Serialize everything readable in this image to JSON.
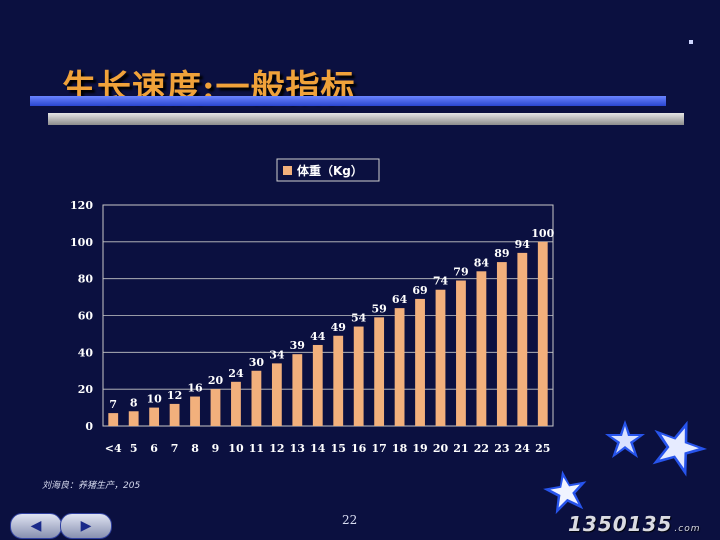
{
  "slide": {
    "title": "生长速度:一般指标",
    "footnote": "刘海良：养猪生产，205",
    "page_number": "22",
    "watermark": "1350135",
    "watermark_suffix": ".com",
    "nav_prev_icon": "arrow-left-icon",
    "nav_next_icon": "arrow-right-icon"
  },
  "colors": {
    "background": "#0b1040",
    "title": "#f0a23a",
    "bar": "#f2b07c",
    "plot_background": "#0b1040",
    "text": "#ffffff"
  },
  "chart_data": {
    "type": "bar",
    "title": "",
    "legend": [
      "体重（Kg）"
    ],
    "legend_position": "top-center",
    "xlabel": "",
    "ylabel": "",
    "ylim": [
      0,
      120
    ],
    "yticks": [
      0,
      20,
      40,
      60,
      80,
      100,
      120
    ],
    "grid": true,
    "categories": [
      "<4",
      "5",
      "6",
      "7",
      "8",
      "9",
      "10",
      "11",
      "12",
      "13",
      "14",
      "15",
      "16",
      "17",
      "18",
      "19",
      "20",
      "21",
      "22",
      "23",
      "24",
      "25"
    ],
    "series": [
      {
        "name": "体重（Kg）",
        "values": [
          7,
          8,
          10,
          12,
          16,
          20,
          24,
          30,
          34,
          39,
          44,
          49,
          54,
          59,
          64,
          69,
          74,
          79,
          84,
          89,
          94,
          100
        ]
      }
    ]
  }
}
